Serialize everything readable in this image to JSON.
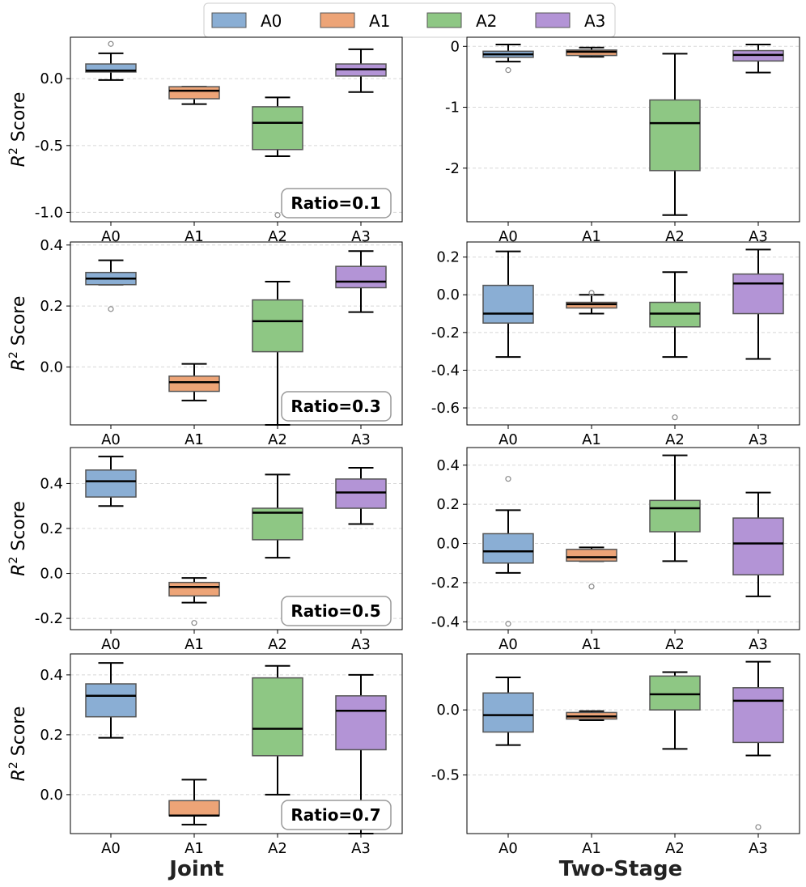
{
  "legend": {
    "items": [
      {
        "label": "A0",
        "color": "#8aaed4"
      },
      {
        "label": "A1",
        "color": "#eda477"
      },
      {
        "label": "A2",
        "color": "#8ec784"
      },
      {
        "label": "A3",
        "color": "#b394d6"
      }
    ]
  },
  "y_axis_label_prefix": "R",
  "y_axis_label_sup": "2",
  "y_axis_label_suffix": " Score",
  "column_labels": [
    "Joint",
    "Two-Stage"
  ],
  "ratio_labels": [
    "Ratio=0.1",
    "Ratio=0.3",
    "Ratio=0.5",
    "Ratio=0.7"
  ],
  "chart_data": [
    {
      "type": "box",
      "column": "Joint",
      "ratio": "Ratio=0.1",
      "ylim": [
        -1.07,
        0.31
      ],
      "yticks": [
        0.0,
        -0.5,
        -1.0
      ],
      "ytick_labels": [
        "0.0",
        "-0.5",
        "-1.0"
      ],
      "categories": [
        "A0",
        "A1",
        "A2",
        "A3"
      ],
      "boxes": [
        {
          "whislo": -0.01,
          "q1": 0.05,
          "med": 0.06,
          "q3": 0.11,
          "whishi": 0.19,
          "fliers": [
            0.26
          ]
        },
        {
          "whislo": -0.19,
          "q1": -0.15,
          "med": -0.09,
          "q3": -0.06,
          "whishi": -0.06,
          "fliers": []
        },
        {
          "whislo": -0.58,
          "q1": -0.53,
          "med": -0.33,
          "q3": -0.21,
          "whishi": -0.14,
          "fliers": [
            -1.02
          ]
        },
        {
          "whislo": -0.1,
          "q1": 0.02,
          "med": 0.07,
          "q3": 0.11,
          "whishi": 0.22,
          "fliers": []
        }
      ]
    },
    {
      "type": "box",
      "column": "Two-Stage",
      "ratio": "Ratio=0.1",
      "ylim": [
        -2.88,
        0.15
      ],
      "yticks": [
        0,
        -1,
        -2
      ],
      "ytick_labels": [
        "0",
        "-1",
        "-2"
      ],
      "categories": [
        "A0",
        "A1",
        "A2",
        "A3"
      ],
      "boxes": [
        {
          "whislo": -0.25,
          "q1": -0.18,
          "med": -0.13,
          "q3": -0.08,
          "whishi": 0.03,
          "fliers": [
            -0.39
          ]
        },
        {
          "whislo": -0.17,
          "q1": -0.15,
          "med": -0.09,
          "q3": -0.06,
          "whishi": -0.02,
          "fliers": []
        },
        {
          "whislo": -2.77,
          "q1": -2.04,
          "med": -1.26,
          "q3": -0.88,
          "whishi": -0.12,
          "fliers": []
        },
        {
          "whislo": -0.43,
          "q1": -0.24,
          "med": -0.14,
          "q3": -0.07,
          "whishi": 0.03,
          "fliers": []
        }
      ]
    },
    {
      "type": "box",
      "column": "Joint",
      "ratio": "Ratio=0.3",
      "ylim": [
        -0.19,
        0.41
      ],
      "yticks": [
        0.4,
        0.2,
        0.0
      ],
      "ytick_labels": [
        "0.4",
        "0.2",
        "0.0"
      ],
      "categories": [
        "A0",
        "A1",
        "A2",
        "A3"
      ],
      "boxes": [
        {
          "whislo": 0.27,
          "q1": 0.27,
          "med": 0.29,
          "q3": 0.31,
          "whishi": 0.35,
          "fliers": [
            0.19
          ]
        },
        {
          "whislo": -0.11,
          "q1": -0.08,
          "med": -0.05,
          "q3": -0.03,
          "whishi": 0.01,
          "fliers": []
        },
        {
          "whislo": -0.19,
          "q1": 0.05,
          "med": 0.15,
          "q3": 0.22,
          "whishi": 0.28,
          "fliers": []
        },
        {
          "whislo": 0.18,
          "q1": 0.26,
          "med": 0.28,
          "q3": 0.33,
          "whishi": 0.38,
          "fliers": []
        }
      ]
    },
    {
      "type": "box",
      "column": "Two-Stage",
      "ratio": "Ratio=0.3",
      "ylim": [
        -0.69,
        0.28
      ],
      "yticks": [
        0.2,
        0.0,
        -0.2,
        -0.4,
        -0.6
      ],
      "ytick_labels": [
        "0.2",
        "0.0",
        "-0.2",
        "-0.4",
        "-0.6"
      ],
      "categories": [
        "A0",
        "A1",
        "A2",
        "A3"
      ],
      "boxes": [
        {
          "whislo": -0.33,
          "q1": -0.15,
          "med": -0.1,
          "q3": 0.05,
          "whishi": 0.23,
          "fliers": []
        },
        {
          "whislo": -0.1,
          "q1": -0.07,
          "med": -0.05,
          "q3": -0.04,
          "whishi": 0.0,
          "fliers": [
            0.01
          ]
        },
        {
          "whislo": -0.33,
          "q1": -0.17,
          "med": -0.1,
          "q3": -0.04,
          "whishi": 0.12,
          "fliers": [
            -0.65
          ]
        },
        {
          "whislo": -0.34,
          "q1": -0.1,
          "med": 0.06,
          "q3": 0.11,
          "whishi": 0.24,
          "fliers": []
        }
      ]
    },
    {
      "type": "box",
      "column": "Joint",
      "ratio": "Ratio=0.5",
      "ylim": [
        -0.25,
        0.56
      ],
      "yticks": [
        0.4,
        0.2,
        0.0,
        -0.2
      ],
      "ytick_labels": [
        "0.4",
        "0.2",
        "0.0",
        "-0.2"
      ],
      "categories": [
        "A0",
        "A1",
        "A2",
        "A3"
      ],
      "boxes": [
        {
          "whislo": 0.3,
          "q1": 0.34,
          "med": 0.41,
          "q3": 0.46,
          "whishi": 0.52,
          "fliers": []
        },
        {
          "whislo": -0.13,
          "q1": -0.1,
          "med": -0.06,
          "q3": -0.04,
          "whishi": -0.02,
          "fliers": [
            -0.22
          ]
        },
        {
          "whislo": 0.07,
          "q1": 0.15,
          "med": 0.27,
          "q3": 0.29,
          "whishi": 0.44,
          "fliers": []
        },
        {
          "whislo": 0.22,
          "q1": 0.29,
          "med": 0.36,
          "q3": 0.42,
          "whishi": 0.47,
          "fliers": []
        }
      ]
    },
    {
      "type": "box",
      "column": "Two-Stage",
      "ratio": "Ratio=0.5",
      "ylim": [
        -0.44,
        0.49
      ],
      "yticks": [
        0.4,
        0.2,
        0.0,
        -0.2,
        -0.4
      ],
      "ytick_labels": [
        "0.4",
        "0.2",
        "0.0",
        "-0.2",
        "-0.4"
      ],
      "categories": [
        "A0",
        "A1",
        "A2",
        "A3"
      ],
      "boxes": [
        {
          "whislo": -0.15,
          "q1": -0.1,
          "med": -0.04,
          "q3": 0.05,
          "whishi": 0.17,
          "fliers": [
            0.33,
            -0.41
          ]
        },
        {
          "whislo": -0.09,
          "q1": -0.09,
          "med": -0.07,
          "q3": -0.03,
          "whishi": -0.02,
          "fliers": [
            -0.22
          ]
        },
        {
          "whislo": -0.09,
          "q1": 0.06,
          "med": 0.18,
          "q3": 0.22,
          "whishi": 0.45,
          "fliers": []
        },
        {
          "whislo": -0.27,
          "q1": -0.16,
          "med": 0.0,
          "q3": 0.13,
          "whishi": 0.26,
          "fliers": []
        }
      ]
    },
    {
      "type": "box",
      "column": "Joint",
      "ratio": "Ratio=0.7",
      "ylim": [
        -0.13,
        0.47
      ],
      "yticks": [
        0.4,
        0.2,
        0.0
      ],
      "ytick_labels": [
        "0.4",
        "0.2",
        "0.0"
      ],
      "categories": [
        "A0",
        "A1",
        "A2",
        "A3"
      ],
      "boxes": [
        {
          "whislo": 0.19,
          "q1": 0.26,
          "med": 0.33,
          "q3": 0.37,
          "whishi": 0.44,
          "fliers": []
        },
        {
          "whislo": -0.1,
          "q1": -0.07,
          "med": -0.07,
          "q3": -0.02,
          "whishi": 0.05,
          "fliers": []
        },
        {
          "whislo": 0.0,
          "q1": 0.13,
          "med": 0.22,
          "q3": 0.39,
          "whishi": 0.43,
          "fliers": []
        },
        {
          "whislo": -0.13,
          "q1": 0.15,
          "med": 0.28,
          "q3": 0.33,
          "whishi": 0.4,
          "fliers": []
        }
      ]
    },
    {
      "type": "box",
      "column": "Two-Stage",
      "ratio": "Ratio=0.7",
      "ylim": [
        -0.95,
        0.43
      ],
      "yticks": [
        0.0,
        -0.5
      ],
      "ytick_labels": [
        "0.0",
        "-0.5"
      ],
      "categories": [
        "A0",
        "A1",
        "A2",
        "A3"
      ],
      "boxes": [
        {
          "whislo": -0.27,
          "q1": -0.17,
          "med": -0.04,
          "q3": 0.13,
          "whishi": 0.25,
          "fliers": []
        },
        {
          "whislo": -0.08,
          "q1": -0.07,
          "med": -0.05,
          "q3": -0.02,
          "whishi": -0.01,
          "fliers": []
        },
        {
          "whislo": -0.3,
          "q1": 0.0,
          "med": 0.12,
          "q3": 0.26,
          "whishi": 0.29,
          "fliers": []
        },
        {
          "whislo": -0.35,
          "q1": -0.25,
          "med": 0.07,
          "q3": 0.17,
          "whishi": 0.37,
          "fliers": [
            -0.9
          ]
        }
      ]
    }
  ]
}
